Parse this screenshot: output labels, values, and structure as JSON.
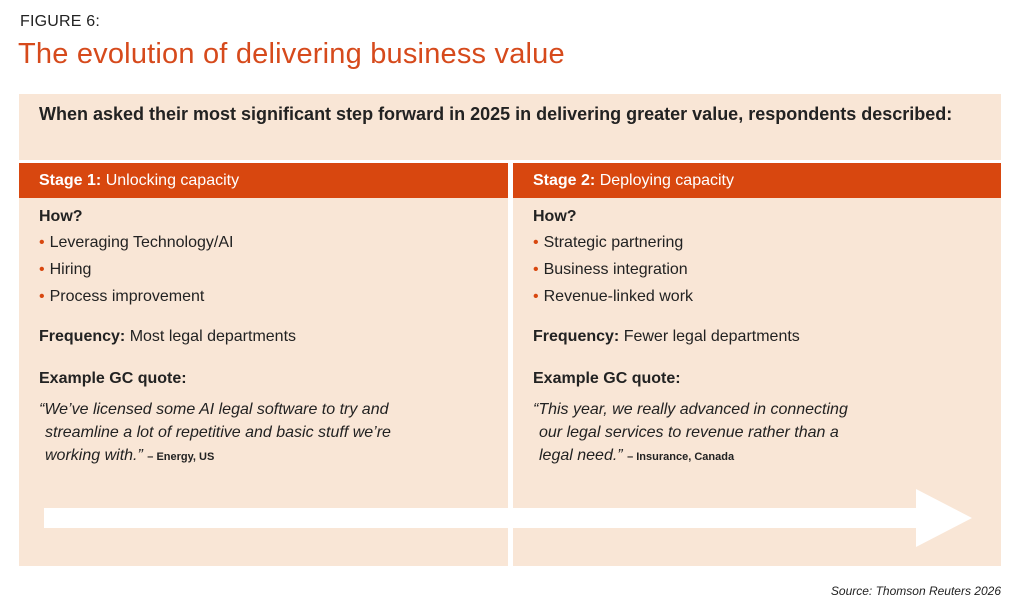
{
  "figure": {
    "label": "FIGURE 6:",
    "title": "The evolution of delivering business value"
  },
  "intro": "When asked their most significant step forward in 2025 in delivering greater value, respondents described:",
  "stages": [
    {
      "header_prefix": "Stage 1:",
      "header_title": "Unlocking capacity",
      "how_label": "How?",
      "how_items": [
        "Leveraging Technology/AI",
        "Hiring",
        "Process improvement"
      ],
      "frequency_label": "Frequency:",
      "frequency_value": "Most legal departments",
      "quote_label": "Example GC quote:",
      "quote_lines": [
        "“We’ve licensed some AI legal software to try and",
        "streamline a lot of repetitive and basic stuff we’re",
        "working with.”"
      ],
      "quote_source": "– Energy, US"
    },
    {
      "header_prefix": "Stage 2:",
      "header_title": "Deploying capacity",
      "how_label": "How?",
      "how_items": [
        "Strategic partnering",
        "Business integration",
        "Revenue-linked work"
      ],
      "frequency_label": "Frequency:",
      "frequency_value": "Fewer legal departments",
      "quote_label": "Example GC quote:",
      "quote_lines": [
        "“This year, we really advanced in connecting",
        "our legal services to revenue rather than a",
        "legal need.”"
      ],
      "quote_source": "– Insurance, Canada"
    }
  ],
  "bullet_glyph": "•",
  "source": "Source: Thomson Reuters 2026",
  "colors": {
    "accent": "#d8470f",
    "title": "#d64a1c",
    "panel": "#f9e6d6"
  }
}
